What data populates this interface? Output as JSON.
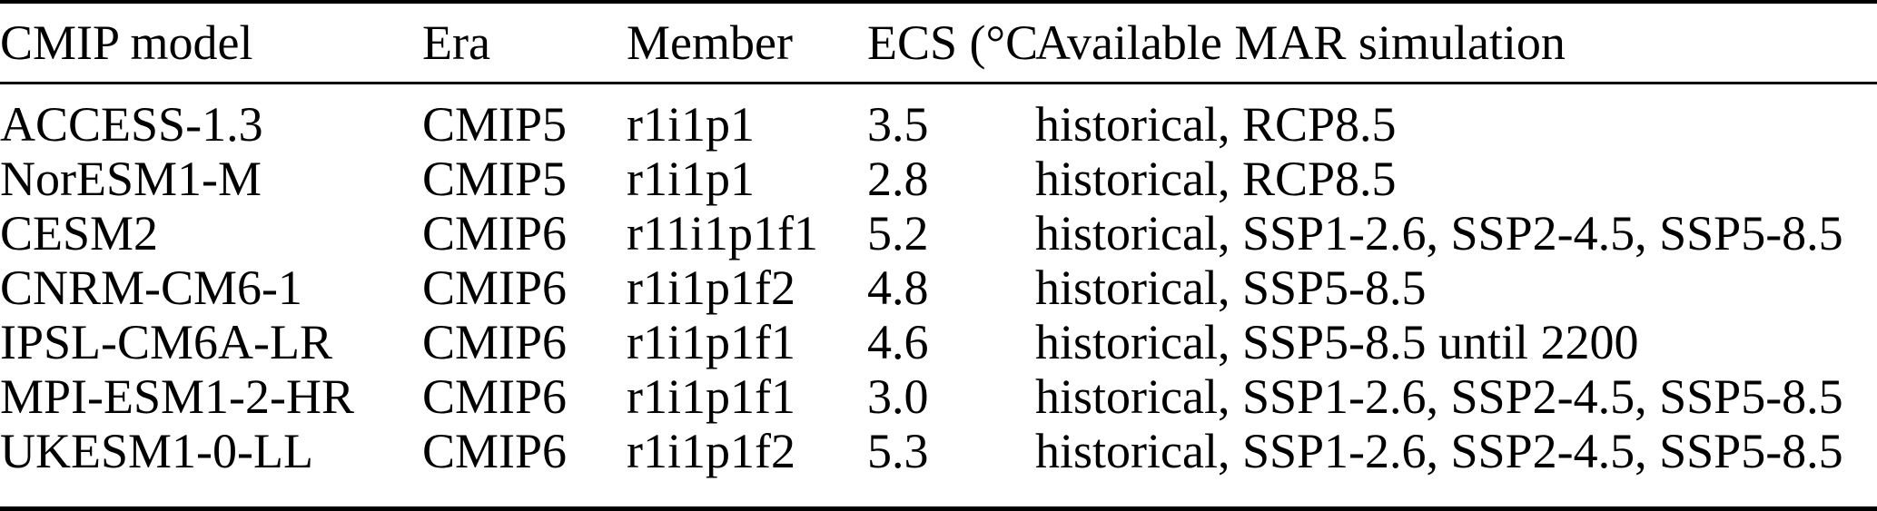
{
  "table": {
    "columns": [
      "CMIP model",
      "Era",
      "Member",
      "ECS (°C)",
      "Available MAR simulation"
    ],
    "rows": [
      {
        "model": "ACCESS-1.3",
        "era": "CMIP5",
        "member": "r1i1p1",
        "ecs": "3.5",
        "simulations": "historical, RCP8.5"
      },
      {
        "model": "NorESM1-M",
        "era": "CMIP5",
        "member": "r1i1p1",
        "ecs": "2.8",
        "simulations": "historical, RCP8.5"
      },
      {
        "model": "CESM2",
        "era": "CMIP6",
        "member": "r11i1p1f1",
        "ecs": "5.2",
        "simulations": "historical, SSP1-2.6, SSP2-4.5, SSP5-8.5"
      },
      {
        "model": "CNRM-CM6-1",
        "era": "CMIP6",
        "member": "r1i1p1f2",
        "ecs": "4.8",
        "simulations": "historical, SSP5-8.5"
      },
      {
        "model": "IPSL-CM6A-LR",
        "era": "CMIP6",
        "member": "r1i1p1f1",
        "ecs": "4.6",
        "simulations": "historical, SSP5-8.5 until 2200"
      },
      {
        "model": "MPI-ESM1-2-HR",
        "era": "CMIP6",
        "member": "r1i1p1f1",
        "ecs": "3.0",
        "simulations": "historical, SSP1-2.6, SSP2-4.5, SSP5-8.5"
      },
      {
        "model": "UKESM1-0-LL",
        "era": "CMIP6",
        "member": "r1i1p1f2",
        "ecs": "5.3",
        "simulations": "historical, SSP1-2.6, SSP2-4.5, SSP5-8.5"
      }
    ]
  },
  "colors": {
    "text": "#000000",
    "background": "#ffffff",
    "rule": "#000000"
  },
  "chart_data": {
    "type": "table",
    "title": "",
    "columns": [
      "CMIP model",
      "Era",
      "Member",
      "ECS (°C)",
      "Available MAR simulation"
    ],
    "rows": [
      [
        "ACCESS-1.3",
        "CMIP5",
        "r1i1p1",
        3.5,
        "historical, RCP8.5"
      ],
      [
        "NorESM1-M",
        "CMIP5",
        "r1i1p1",
        2.8,
        "historical, RCP8.5"
      ],
      [
        "CESM2",
        "CMIP6",
        "r11i1p1f1",
        5.2,
        "historical, SSP1-2.6, SSP2-4.5, SSP5-8.5"
      ],
      [
        "CNRM-CM6-1",
        "CMIP6",
        "r1i1p1f2",
        4.8,
        "historical, SSP5-8.5"
      ],
      [
        "IPSL-CM6A-LR",
        "CMIP6",
        "r1i1p1f1",
        4.6,
        "historical, SSP5-8.5 until 2200"
      ],
      [
        "MPI-ESM1-2-HR",
        "CMIP6",
        "r1i1p1f1",
        3.0,
        "historical, SSP1-2.6, SSP2-4.5, SSP5-8.5"
      ],
      [
        "UKESM1-0-LL",
        "CMIP6",
        "r1i1p1f2",
        5.3,
        "historical, SSP1-2.6, SSP2-4.5, SSP5-8.5"
      ]
    ]
  }
}
